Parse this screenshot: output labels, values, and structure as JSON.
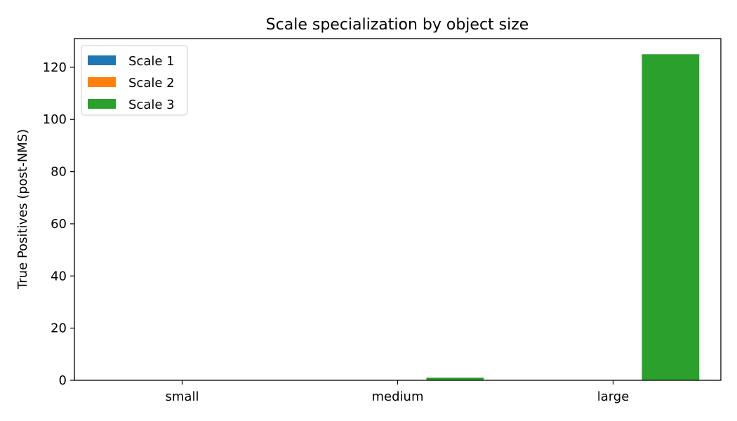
{
  "chart_data": {
    "type": "bar",
    "title": "Scale specialization by object size",
    "xlabel": "",
    "ylabel": "True Positives (post-NMS)",
    "categories": [
      "small",
      "medium",
      "large"
    ],
    "series": [
      {
        "name": "Scale 1",
        "color": "#1f77b4",
        "values": [
          0,
          0,
          0
        ]
      },
      {
        "name": "Scale 2",
        "color": "#ff7f0e",
        "values": [
          0,
          0,
          0
        ]
      },
      {
        "name": "Scale 3",
        "color": "#2ca02c",
        "values": [
          0,
          1,
          125
        ]
      }
    ],
    "ylim": [
      0,
      131
    ],
    "yticks": [
      0,
      20,
      40,
      60,
      80,
      100,
      120
    ],
    "grid": false,
    "legend_position": "top-left"
  }
}
